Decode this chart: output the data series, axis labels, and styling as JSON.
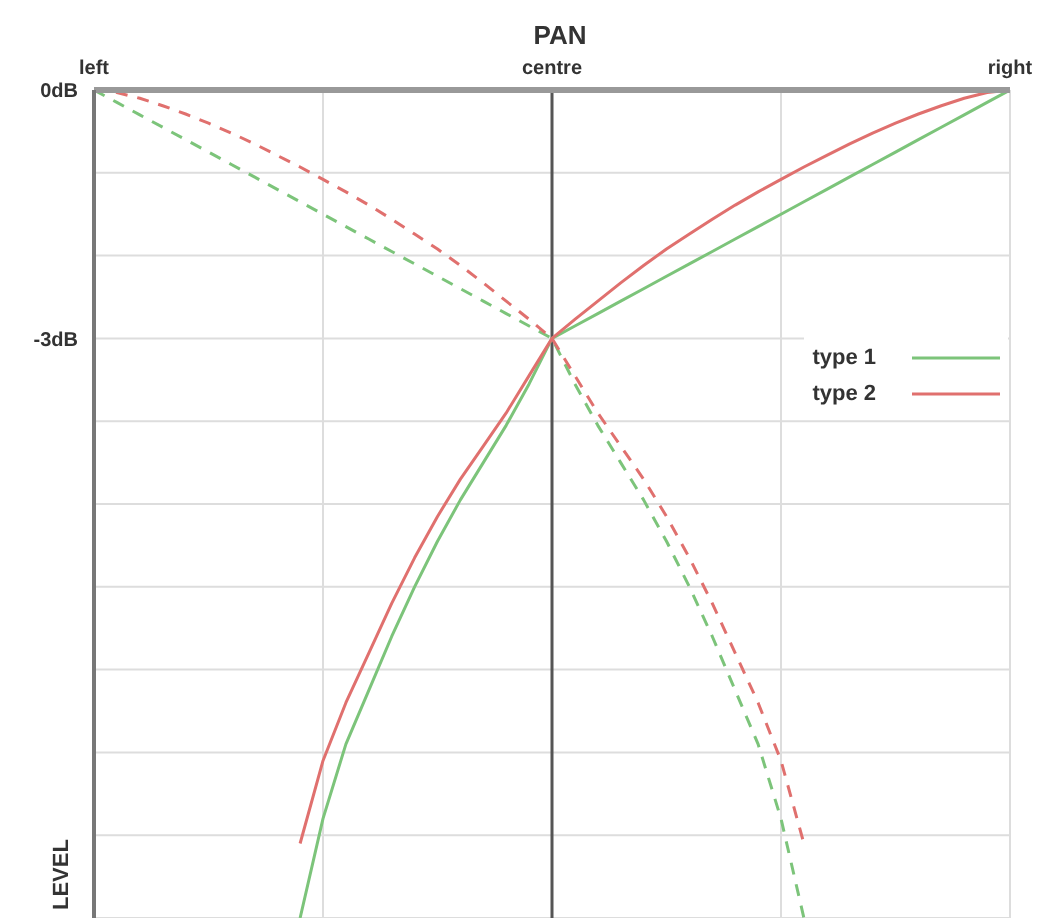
{
  "chart_data": {
    "type": "line",
    "title": "PAN",
    "ylabel": "LEVEL",
    "categories": [
      "left",
      null,
      null,
      null,
      null,
      null,
      null,
      null,
      null,
      null,
      null,
      null,
      null,
      null,
      null,
      null,
      null,
      null,
      null,
      null,
      "centre",
      null,
      null,
      null,
      null,
      null,
      null,
      null,
      null,
      null,
      null,
      null,
      null,
      null,
      null,
      null,
      null,
      null,
      null,
      null,
      "right"
    ],
    "ylim": [
      -10,
      0
    ],
    "yticks": [
      {
        "value": 0,
        "label": "0dB"
      },
      {
        "value": -1,
        "label": null
      },
      {
        "value": -2,
        "label": null
      },
      {
        "value": -3,
        "label": "-3dB"
      },
      {
        "value": -4,
        "label": null
      },
      {
        "value": -5,
        "label": null
      },
      {
        "value": -6,
        "label": null
      },
      {
        "value": -7,
        "label": null
      },
      {
        "value": -8,
        "label": null
      },
      {
        "value": -9,
        "label": null
      },
      {
        "value": -10,
        "label": null
      }
    ],
    "grid": true,
    "legend": "right",
    "marker": "none",
    "ref_lines": [
      {
        "axis": "x",
        "value": "centre",
        "color": "#555555"
      }
    ],
    "series": [
      {
        "name": "type 1",
        "color": "#7cc47a",
        "line_style": "solid",
        "values": [
          null,
          null,
          null,
          null,
          null,
          null,
          null,
          null,
          null,
          -10,
          -8.8,
          -7.9,
          -7.25,
          -6.6,
          -6.0,
          -5.45,
          -4.95,
          -4.5,
          -4.05,
          -3.55,
          -3,
          -2.85,
          -2.7,
          -2.55,
          -2.4,
          -2.25,
          -2.1,
          -1.95,
          -1.8,
          -1.65,
          -1.5,
          -1.35,
          -1.2,
          -1.05,
          -0.9,
          -0.75,
          -0.6,
          -0.45,
          -0.3,
          -0.15,
          0
        ]
      },
      {
        "name": "type 2",
        "color": "#e0706e",
        "line_style": "solid",
        "values": [
          null,
          null,
          null,
          null,
          null,
          null,
          null,
          null,
          null,
          -9.1,
          -8.1,
          -7.4,
          -6.8,
          -6.2,
          -5.65,
          -5.15,
          -4.7,
          -4.3,
          -3.9,
          -3.45,
          -3,
          -2.77,
          -2.55,
          -2.33,
          -2.12,
          -1.92,
          -1.74,
          -1.56,
          -1.39,
          -1.23,
          -1.08,
          -0.93,
          -0.79,
          -0.65,
          -0.52,
          -0.4,
          -0.29,
          -0.19,
          -0.1,
          -0.03,
          0
        ]
      },
      {
        "color": "#7cc47a",
        "line_style": "dashed",
        "values": [
          0,
          -0.15,
          -0.3,
          -0.45,
          -0.6,
          -0.75,
          -0.9,
          -1.05,
          -1.2,
          -1.35,
          -1.5,
          -1.65,
          -1.8,
          -1.95,
          -2.1,
          -2.25,
          -2.4,
          -2.55,
          -2.7,
          -2.85,
          -3,
          -3.55,
          -4.05,
          -4.5,
          -4.95,
          -5.45,
          -6.0,
          -6.6,
          -7.25,
          -7.9,
          -8.8,
          -10,
          null,
          null,
          null,
          null,
          null,
          null,
          null,
          null,
          null
        ]
      },
      {
        "color": "#e0706e",
        "line_style": "dashed",
        "values": [
          0,
          -0.03,
          -0.1,
          -0.19,
          -0.29,
          -0.4,
          -0.52,
          -0.65,
          -0.79,
          -0.93,
          -1.08,
          -1.23,
          -1.39,
          -1.56,
          -1.74,
          -1.92,
          -2.12,
          -2.33,
          -2.55,
          -2.77,
          -3,
          -3.45,
          -3.9,
          -4.3,
          -4.7,
          -5.15,
          -5.65,
          -6.2,
          -6.8,
          -7.4,
          -8.1,
          -9.1,
          null,
          null,
          null,
          null,
          null,
          null,
          null,
          null,
          null
        ]
      }
    ]
  }
}
